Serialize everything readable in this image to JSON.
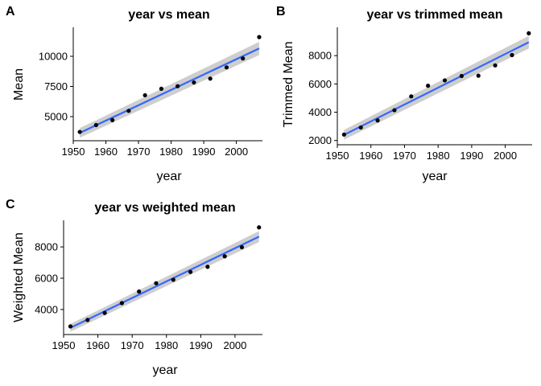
{
  "chart_data": [
    {
      "panel": "A",
      "type": "scatter",
      "title": "year vs mean",
      "xlabel": "year",
      "ylabel": "Mean",
      "xlim": [
        1950,
        2008
      ],
      "ylim": [
        3000,
        12400
      ],
      "xticks": [
        1950,
        1960,
        1970,
        1980,
        1990,
        2000
      ],
      "yticks": [
        5000,
        7500,
        10000
      ],
      "grid": false,
      "points": {
        "x": [
          1952,
          1957,
          1962,
          1967,
          1972,
          1977,
          1982,
          1987,
          1992,
          1997,
          2002,
          2007
        ],
        "y": [
          3730,
          4300,
          4710,
          5480,
          6770,
          7310,
          7520,
          7830,
          8150,
          9080,
          9820,
          11590
        ]
      },
      "trend": {
        "x": [
          1952,
          2007
        ],
        "y": [
          3650,
          10650
        ],
        "ci_halfwidth": [
          400,
          550
        ]
      },
      "colors": {
        "points": "#000000",
        "line": "#3366FF",
        "ribbon": "#BEBEBE"
      }
    },
    {
      "panel": "B",
      "type": "scatter",
      "title": "year vs trimmed mean",
      "xlabel": "year",
      "ylabel": "Trimmed Mean",
      "xlim": [
        1950,
        2008
      ],
      "ylim": [
        1700,
        10000
      ],
      "xticks": [
        1950,
        1960,
        1970,
        1980,
        1990,
        2000
      ],
      "yticks": [
        2000,
        4000,
        6000,
        8000
      ],
      "grid": false,
      "points": {
        "x": [
          1952,
          1957,
          1962,
          1967,
          1972,
          1977,
          1982,
          1987,
          1992,
          1997,
          2002,
          2007
        ],
        "y": [
          2420,
          2920,
          3420,
          4140,
          5120,
          5870,
          6250,
          6560,
          6580,
          7310,
          8040,
          9580
        ]
      },
      "trend": {
        "x": [
          1952,
          2007
        ],
        "y": [
          2400,
          8950
        ],
        "ci_halfwidth": [
          350,
          450
        ]
      },
      "colors": {
        "points": "#000000",
        "line": "#3366FF",
        "ribbon": "#BEBEBE"
      }
    },
    {
      "panel": "C",
      "type": "scatter",
      "title": "year vs weighted mean",
      "xlabel": "year",
      "ylabel": "Weighted Mean",
      "xlim": [
        1950,
        2008
      ],
      "ylim": [
        2400,
        9700
      ],
      "xticks": [
        1950,
        1960,
        1970,
        1980,
        1990,
        2000
      ],
      "yticks": [
        4000,
        6000,
        8000
      ],
      "grid": false,
      "points": {
        "x": [
          1952,
          1957,
          1962,
          1967,
          1972,
          1977,
          1982,
          1987,
          1992,
          1997,
          2002,
          2007
        ],
        "y": [
          2920,
          3330,
          3780,
          4410,
          5150,
          5680,
          5900,
          6400,
          6730,
          7400,
          7980,
          9250
        ]
      },
      "trend": {
        "x": [
          1952,
          2007
        ],
        "y": [
          2830,
          8660
        ],
        "ci_halfwidth": [
          250,
          350
        ]
      },
      "colors": {
        "points": "#000000",
        "line": "#3366FF",
        "ribbon": "#BEBEBE"
      }
    }
  ]
}
